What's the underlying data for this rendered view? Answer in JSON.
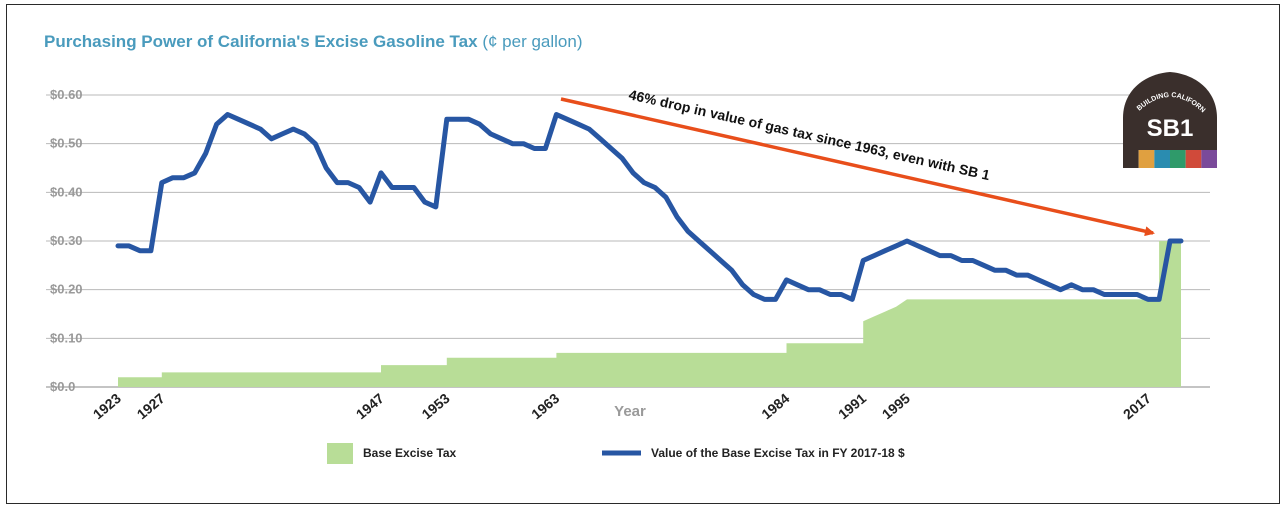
{
  "chart_data": {
    "type": "area",
    "title": "Purchasing Power of California's Excise Gasoline Tax",
    "subtitle": "(¢ per gallon)",
    "xlabel": "Year",
    "ylabel": "",
    "xlim": [
      1923,
      2020
    ],
    "ylim": [
      0,
      0.6
    ],
    "grid": true,
    "legend_position": "bottom",
    "y_ticks": [
      "$0.0",
      "$0.10",
      "$0.20",
      "$0.30",
      "$0.40",
      "$0.50",
      "$0.60"
    ],
    "x_ticks": [
      "1923",
      "1927",
      "1947",
      "1953",
      "1963",
      "1984",
      "1991",
      "1995",
      "2017"
    ],
    "series": [
      {
        "name": "Base Excise Tax",
        "type": "area",
        "color": "#b8dd97",
        "points": [
          [
            1923,
            0.02
          ],
          [
            1927,
            0.02
          ],
          [
            1927,
            0.03
          ],
          [
            1947,
            0.03
          ],
          [
            1947,
            0.045
          ],
          [
            1953,
            0.045
          ],
          [
            1953,
            0.06
          ],
          [
            1963,
            0.06
          ],
          [
            1963,
            0.07
          ],
          [
            1984,
            0.07
          ],
          [
            1984,
            0.09
          ],
          [
            1991,
            0.09
          ],
          [
            1991,
            0.135
          ],
          [
            1992,
            0.145
          ],
          [
            1993,
            0.155
          ],
          [
            1994,
            0.165
          ],
          [
            1995,
            0.18
          ],
          [
            2018,
            0.18
          ],
          [
            2018,
            0.3
          ],
          [
            2020,
            0.3
          ]
        ]
      },
      {
        "name": "Value of the Base Excise Tax in FY 2017-18 $",
        "type": "line",
        "color": "#2756a3",
        "points": [
          [
            1923,
            0.29
          ],
          [
            1924,
            0.29
          ],
          [
            1925,
            0.28
          ],
          [
            1926,
            0.28
          ],
          [
            1927,
            0.42
          ],
          [
            1928,
            0.43
          ],
          [
            1929,
            0.43
          ],
          [
            1930,
            0.44
          ],
          [
            1931,
            0.48
          ],
          [
            1932,
            0.54
          ],
          [
            1933,
            0.56
          ],
          [
            1934,
            0.55
          ],
          [
            1935,
            0.54
          ],
          [
            1936,
            0.53
          ],
          [
            1937,
            0.51
          ],
          [
            1938,
            0.52
          ],
          [
            1939,
            0.53
          ],
          [
            1940,
            0.52
          ],
          [
            1941,
            0.5
          ],
          [
            1942,
            0.45
          ],
          [
            1943,
            0.42
          ],
          [
            1944,
            0.42
          ],
          [
            1945,
            0.41
          ],
          [
            1946,
            0.38
          ],
          [
            1947,
            0.44
          ],
          [
            1948,
            0.41
          ],
          [
            1949,
            0.41
          ],
          [
            1950,
            0.41
          ],
          [
            1951,
            0.38
          ],
          [
            1952,
            0.37
          ],
          [
            1953,
            0.55
          ],
          [
            1954,
            0.55
          ],
          [
            1955,
            0.55
          ],
          [
            1956,
            0.54
          ],
          [
            1957,
            0.52
          ],
          [
            1958,
            0.51
          ],
          [
            1959,
            0.5
          ],
          [
            1960,
            0.5
          ],
          [
            1961,
            0.49
          ],
          [
            1962,
            0.49
          ],
          [
            1963,
            0.56
          ],
          [
            1964,
            0.55
          ],
          [
            1965,
            0.54
          ],
          [
            1966,
            0.53
          ],
          [
            1967,
            0.51
          ],
          [
            1968,
            0.49
          ],
          [
            1969,
            0.47
          ],
          [
            1970,
            0.44
          ],
          [
            1971,
            0.42
          ],
          [
            1972,
            0.41
          ],
          [
            1973,
            0.39
          ],
          [
            1974,
            0.35
          ],
          [
            1975,
            0.32
          ],
          [
            1976,
            0.3
          ],
          [
            1977,
            0.28
          ],
          [
            1978,
            0.26
          ],
          [
            1979,
            0.24
          ],
          [
            1980,
            0.21
          ],
          [
            1981,
            0.19
          ],
          [
            1982,
            0.18
          ],
          [
            1983,
            0.18
          ],
          [
            1984,
            0.22
          ],
          [
            1985,
            0.21
          ],
          [
            1986,
            0.2
          ],
          [
            1987,
            0.2
          ],
          [
            1988,
            0.19
          ],
          [
            1989,
            0.19
          ],
          [
            1990,
            0.18
          ],
          [
            1991,
            0.26
          ],
          [
            1992,
            0.27
          ],
          [
            1993,
            0.28
          ],
          [
            1994,
            0.29
          ],
          [
            1995,
            0.3
          ],
          [
            1996,
            0.29
          ],
          [
            1997,
            0.28
          ],
          [
            1998,
            0.27
          ],
          [
            1999,
            0.27
          ],
          [
            2000,
            0.26
          ],
          [
            2001,
            0.26
          ],
          [
            2002,
            0.25
          ],
          [
            2003,
            0.24
          ],
          [
            2004,
            0.24
          ],
          [
            2005,
            0.23
          ],
          [
            2006,
            0.23
          ],
          [
            2007,
            0.22
          ],
          [
            2008,
            0.21
          ],
          [
            2009,
            0.2
          ],
          [
            2010,
            0.21
          ],
          [
            2011,
            0.2
          ],
          [
            2012,
            0.2
          ],
          [
            2013,
            0.19
          ],
          [
            2014,
            0.19
          ],
          [
            2015,
            0.19
          ],
          [
            2016,
            0.19
          ],
          [
            2017,
            0.18
          ],
          [
            2018,
            0.18
          ],
          [
            2019,
            0.3
          ],
          [
            2020,
            0.3
          ]
        ]
      }
    ],
    "annotation": {
      "text": "46% drop in value of gas tax since 1963, even with SB 1",
      "arrow_color": "#e84e1b"
    }
  },
  "badge": {
    "top_text": "REBUILDING CALIFORNIA",
    "main_text": "SB1",
    "colors": [
      "#3a2f2c",
      "#e0a040",
      "#2a8cb0",
      "#2f9a6a",
      "#d04a3a",
      "#7a4a9a"
    ]
  }
}
